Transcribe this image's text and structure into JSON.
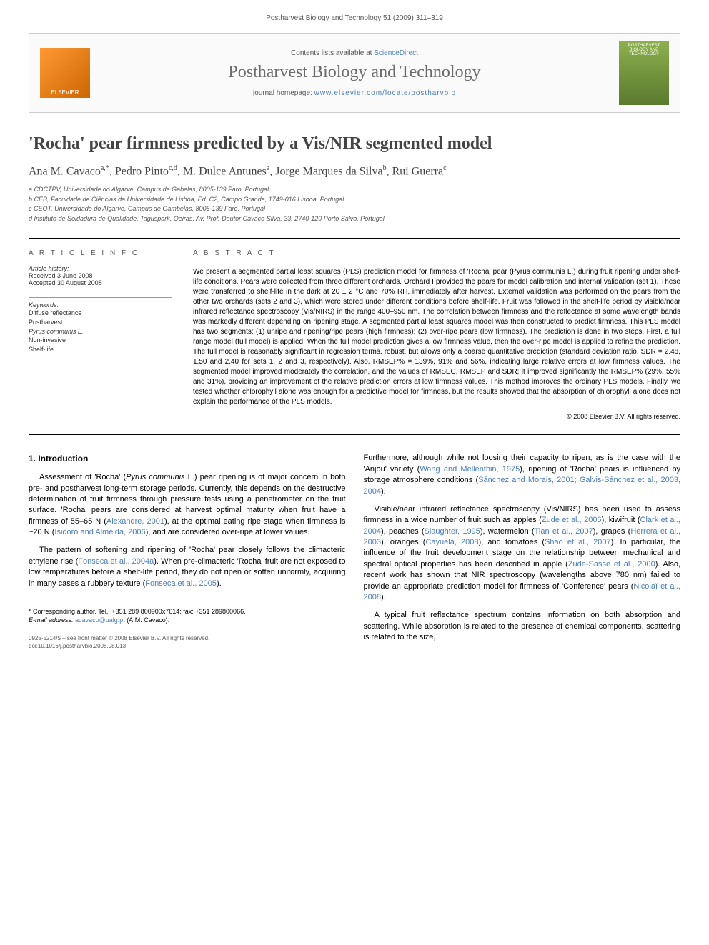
{
  "header_line": "Postharvest Biology and Technology 51 (2009) 311–319",
  "banner": {
    "publisher_logo_text": "ELSEVIER",
    "contents_prefix": "Contents lists available at ",
    "contents_link": "ScienceDirect",
    "journal_title": "Postharvest Biology and Technology",
    "homepage_prefix": "journal homepage: ",
    "homepage_link": "www.elsevier.com/locate/postharvbio",
    "cover_text": "POSTHARVEST BIOLOGY AND TECHNOLOGY"
  },
  "article": {
    "title": "'Rocha' pear firmness predicted by a Vis/NIR segmented model",
    "authors_html": "Ana M. Cavaco<sup>a,*</sup>, Pedro Pinto<sup>c,d</sup>, M. Dulce Antunes<sup>a</sup>, Jorge Marques da Silva<sup>b</sup>, Rui Guerra<sup>c</sup>",
    "affiliations": [
      "a CDCTPV, Universidade do Algarve, Campus de Gabelas, 8005-139 Faro, Portugal",
      "b CEB, Faculdade de Ciências da Universidade de Lisboa, Ed. C2, Campo Grande, 1749-016 Lisboa, Portugal",
      "c CEOT, Universidade do Algarve, Campus de Gambelas, 8005-139 Faro, Portugal",
      "d Instituto de Soldadura de Qualidade, Taguspark, Oeiras, Av. Prof. Doutor Cavaco Silva, 33, 2740-120 Porto Salvo, Portugal"
    ]
  },
  "info": {
    "heading": "A R T I C L E   I N F O",
    "history_label": "Article history:",
    "received": "Received 3 June 2008",
    "accepted": "Accepted 30 August 2008",
    "keywords_label": "Keywords:",
    "keywords": [
      "Diffuse reflectance",
      "Postharvest",
      "Pyrus communis L.",
      "Non-invasive",
      "Shelf-life"
    ]
  },
  "abstract": {
    "heading": "A B S T R A C T",
    "text": "We present a segmented partial least squares (PLS) prediction model for firmness of 'Rocha' pear (Pyrus communis L.) during fruit ripening under shelf-life conditions. Pears were collected from three different orchards. Orchard I provided the pears for model calibration and internal validation (set 1). These were transferred to shelf-life in the dark at 20 ± 2 °C and 70% RH, immediately after harvest. External validation was performed on the pears from the other two orchards (sets 2 and 3), which were stored under different conditions before shelf-life. Fruit was followed in the shelf-life period by visible/near infrared reflectance spectroscopy (Vis/NIRS) in the range 400–950 nm. The correlation between firmness and the reflectance at some wavelength bands was markedly different depending on ripening stage. A segmented partial least squares model was then constructed to predict firmness. This PLS model has two segments: (1) unripe and ripening/ripe pears (high firmness); (2) over-ripe pears (low firmness). The prediction is done in two steps. First, a full range model (full model) is applied. When the full model prediction gives a low firmness value, then the over-ripe model is applied to refine the prediction. The full model is reasonably significant in regression terms, robust, but allows only a coarse quantitative prediction (standard deviation ratio, SDR = 2.48, 1.50 and 2.40 for sets 1, 2 and 3, respectively). Also, RMSEP% = 139%, 91% and 56%, indicating large relative errors at low firmness values. The segmented model improved moderately the correlation, and the values of RMSEC, RMSEP and SDR; it improved significantly the RMSEP% (29%, 55% and 31%), providing an improvement of the relative prediction errors at low firmness values. This method improves the ordinary PLS models. Finally, we tested whether chlorophyll alone was enough for a predictive model for firmness, but the results showed that the absorption of chlorophyll alone does not explain the performance of the PLS models.",
    "copyright": "© 2008 Elsevier B.V. All rights reserved."
  },
  "body": {
    "section_heading": "1. Introduction",
    "left_paragraphs_html": [
      "Assessment of 'Rocha' (<i>Pyrus communis</i> L.) pear ripening is of major concern in both pre- and postharvest long-term storage periods. Currently, this depends on the destructive determination of fruit firmness through pressure tests using a penetrometer on the fruit surface. 'Rocha' pears are considered at harvest optimal maturity when fruit have a firmness of 55–65 N (<a>Alexandre, 2001</a>), at the optimal eating ripe stage when firmness is ~20 N (<a>Isidoro and Almeida, 2006</a>), and are considered over-ripe at lower values.",
      "The pattern of softening and ripening of 'Rocha' pear closely follows the climacteric ethylene rise (<a>Fonseca et al., 2004a</a>). When pre-climacteric 'Rocha' fruit are not exposed to low temperatures before a shelf-life period, they do not ripen or soften uniformly, acquiring in many cases a rubbery texture (<a>Fonseca et al., 2005</a>)."
    ],
    "right_paragraphs_html": [
      "Furthermore, although while not loosing their capacity to ripen, as is the case with the 'Anjou' variety (<a>Wang and Mellenthin, 1975</a>), ripening of 'Rocha' pears is influenced by storage atmosphere conditions (<a>Sánchez and Morais, 2001; Galvis-Sánchez et al., 2003, 2004</a>).",
      "Visible/near infrared reflectance spectroscopy (Vis/NIRS) has been used to assess firmness in a wide number of fruit such as apples (<a>Zude et al., 2006</a>), kiwifruit (<a>Clark et al., 2004</a>), peaches (<a>Slaughter, 1995</a>), watermelon (<a>Tian et al., 2007</a>), grapes (<a>Herrera et al., 2003</a>), oranges (<a>Cayuela, 2008</a>), and tomatoes (<a>Shao et al., 2007</a>). In particular, the influence of the fruit development stage on the relationship between mechanical and spectral optical properties has been described in apple (<a>Zude-Sasse et al., 2000</a>). Also, recent work has shown that NIR spectroscopy (wavelengths above 780 nm) failed to provide an appropriate prediction model for firmness of 'Conference' pears (<a>Nicolaï et al., 2008</a>).",
      "A typical fruit reflectance spectrum contains information on both absorption and scattering. While absorption is related to the presence of chemical components, scattering is related to the size,"
    ]
  },
  "footnote": {
    "corresponding": "* Corresponding author. Tel.: +351 289 800900x7614; fax: +351 289800066.",
    "email_label": "E-mail address:",
    "email": "acavaco@ualg.pt",
    "email_suffix": "(A.M. Cavaco)."
  },
  "footer": {
    "line1": "0925-5214/$ – see front matter © 2008 Elsevier B.V. All rights reserved.",
    "line2": "doi:10.1016/j.postharvbio.2008.08.013"
  }
}
